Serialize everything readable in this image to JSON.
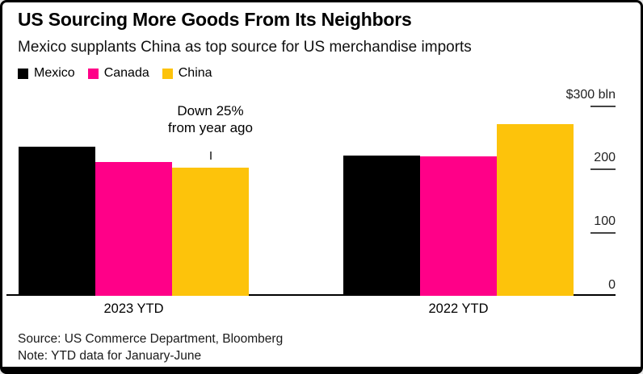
{
  "header": {
    "title": "US Sourcing More Goods From Its Neighbors",
    "subtitle": "Mexico supplants China as top source for US merchandise imports"
  },
  "legend": {
    "items": [
      {
        "label": "Mexico",
        "color": "#000000"
      },
      {
        "label": "Canada",
        "color": "#ff0088"
      },
      {
        "label": "China",
        "color": "#fdc30b"
      }
    ]
  },
  "chart_data": {
    "type": "bar",
    "categories": [
      "2023 YTD",
      "2022 YTD"
    ],
    "series": [
      {
        "name": "Mexico",
        "color": "#000000",
        "values": [
          236,
          222
        ]
      },
      {
        "name": "Canada",
        "color": "#ff0088",
        "values": [
          211,
          221
        ]
      },
      {
        "name": "China",
        "color": "#fdc30b",
        "values": [
          203,
          271
        ]
      }
    ],
    "unit": "bln",
    "ylim": [
      0,
      300
    ],
    "yticks": [
      {
        "label": "$300 bln",
        "value": 300
      },
      {
        "label": "200",
        "value": 200
      },
      {
        "label": "100",
        "value": 100
      },
      {
        "label": "0",
        "value": 0
      }
    ],
    "grid": false,
    "legend_position": "top-left",
    "axis_side": "right",
    "annotation": {
      "line1": "Down 25%",
      "line2": "from year ago",
      "target_series": "China",
      "target_category": "2023 YTD"
    }
  },
  "footer": {
    "source": "Source: US Commerce Department, Bloomberg",
    "note": "Note: YTD data for January-June"
  }
}
